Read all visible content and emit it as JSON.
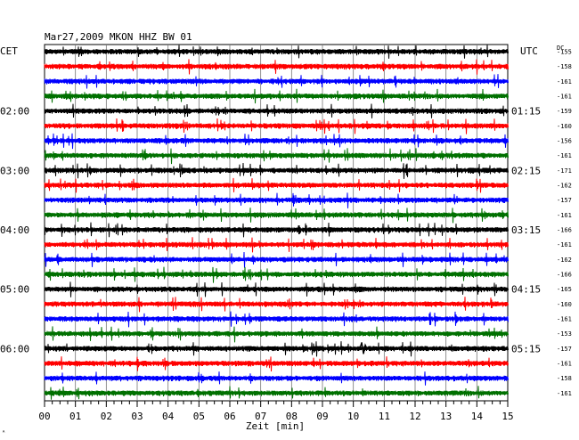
{
  "header": {
    "title": "Mar27,2009   MKON HHZ BW 01",
    "left_zone": "CET",
    "right_zone": "UTC",
    "dc_label": "DC"
  },
  "corner_mark": "ᴬ",
  "chart_data": {
    "type": "line",
    "title": "Mar27,2009   MKON HHZ BW 01",
    "xlabel": "Zeit [min]",
    "ylabel": "",
    "xlim": [
      0,
      15
    ],
    "x_ticks": [
      "00",
      "01",
      "02",
      "03",
      "04",
      "05",
      "06",
      "07",
      "08",
      "09",
      "10",
      "11",
      "12",
      "13",
      "14",
      "15"
    ],
    "grid": true,
    "trace_colors": [
      "#000000",
      "#ff0000",
      "#0000ff",
      "#007000"
    ],
    "left_time_labels": [
      {
        "trace": 4,
        "label": "02:00"
      },
      {
        "trace": 8,
        "label": "03:00"
      },
      {
        "trace": 12,
        "label": "04:00"
      },
      {
        "trace": 16,
        "label": "05:00"
      },
      {
        "trace": 20,
        "label": "06:00"
      }
    ],
    "right_time_labels": [
      {
        "trace": 4,
        "label": "01:15"
      },
      {
        "trace": 8,
        "label": "02:15"
      },
      {
        "trace": 12,
        "label": "03:15"
      },
      {
        "trace": 16,
        "label": "04:15"
      },
      {
        "trace": 20,
        "label": "05:15"
      }
    ],
    "dc_offsets": [
      "-155",
      "-158",
      "-161",
      "-161",
      "-159",
      "-160",
      "-156",
      "-161",
      "-171",
      "-162",
      "-157",
      "-161",
      "-166",
      "-161",
      "-162",
      "-166",
      "-165",
      "-160",
      "-161",
      "-153",
      "-157",
      "-161",
      "-158",
      "-161"
    ],
    "events": [
      {
        "trace": 20,
        "minute": 10.3,
        "amplitude": "large"
      }
    ]
  }
}
